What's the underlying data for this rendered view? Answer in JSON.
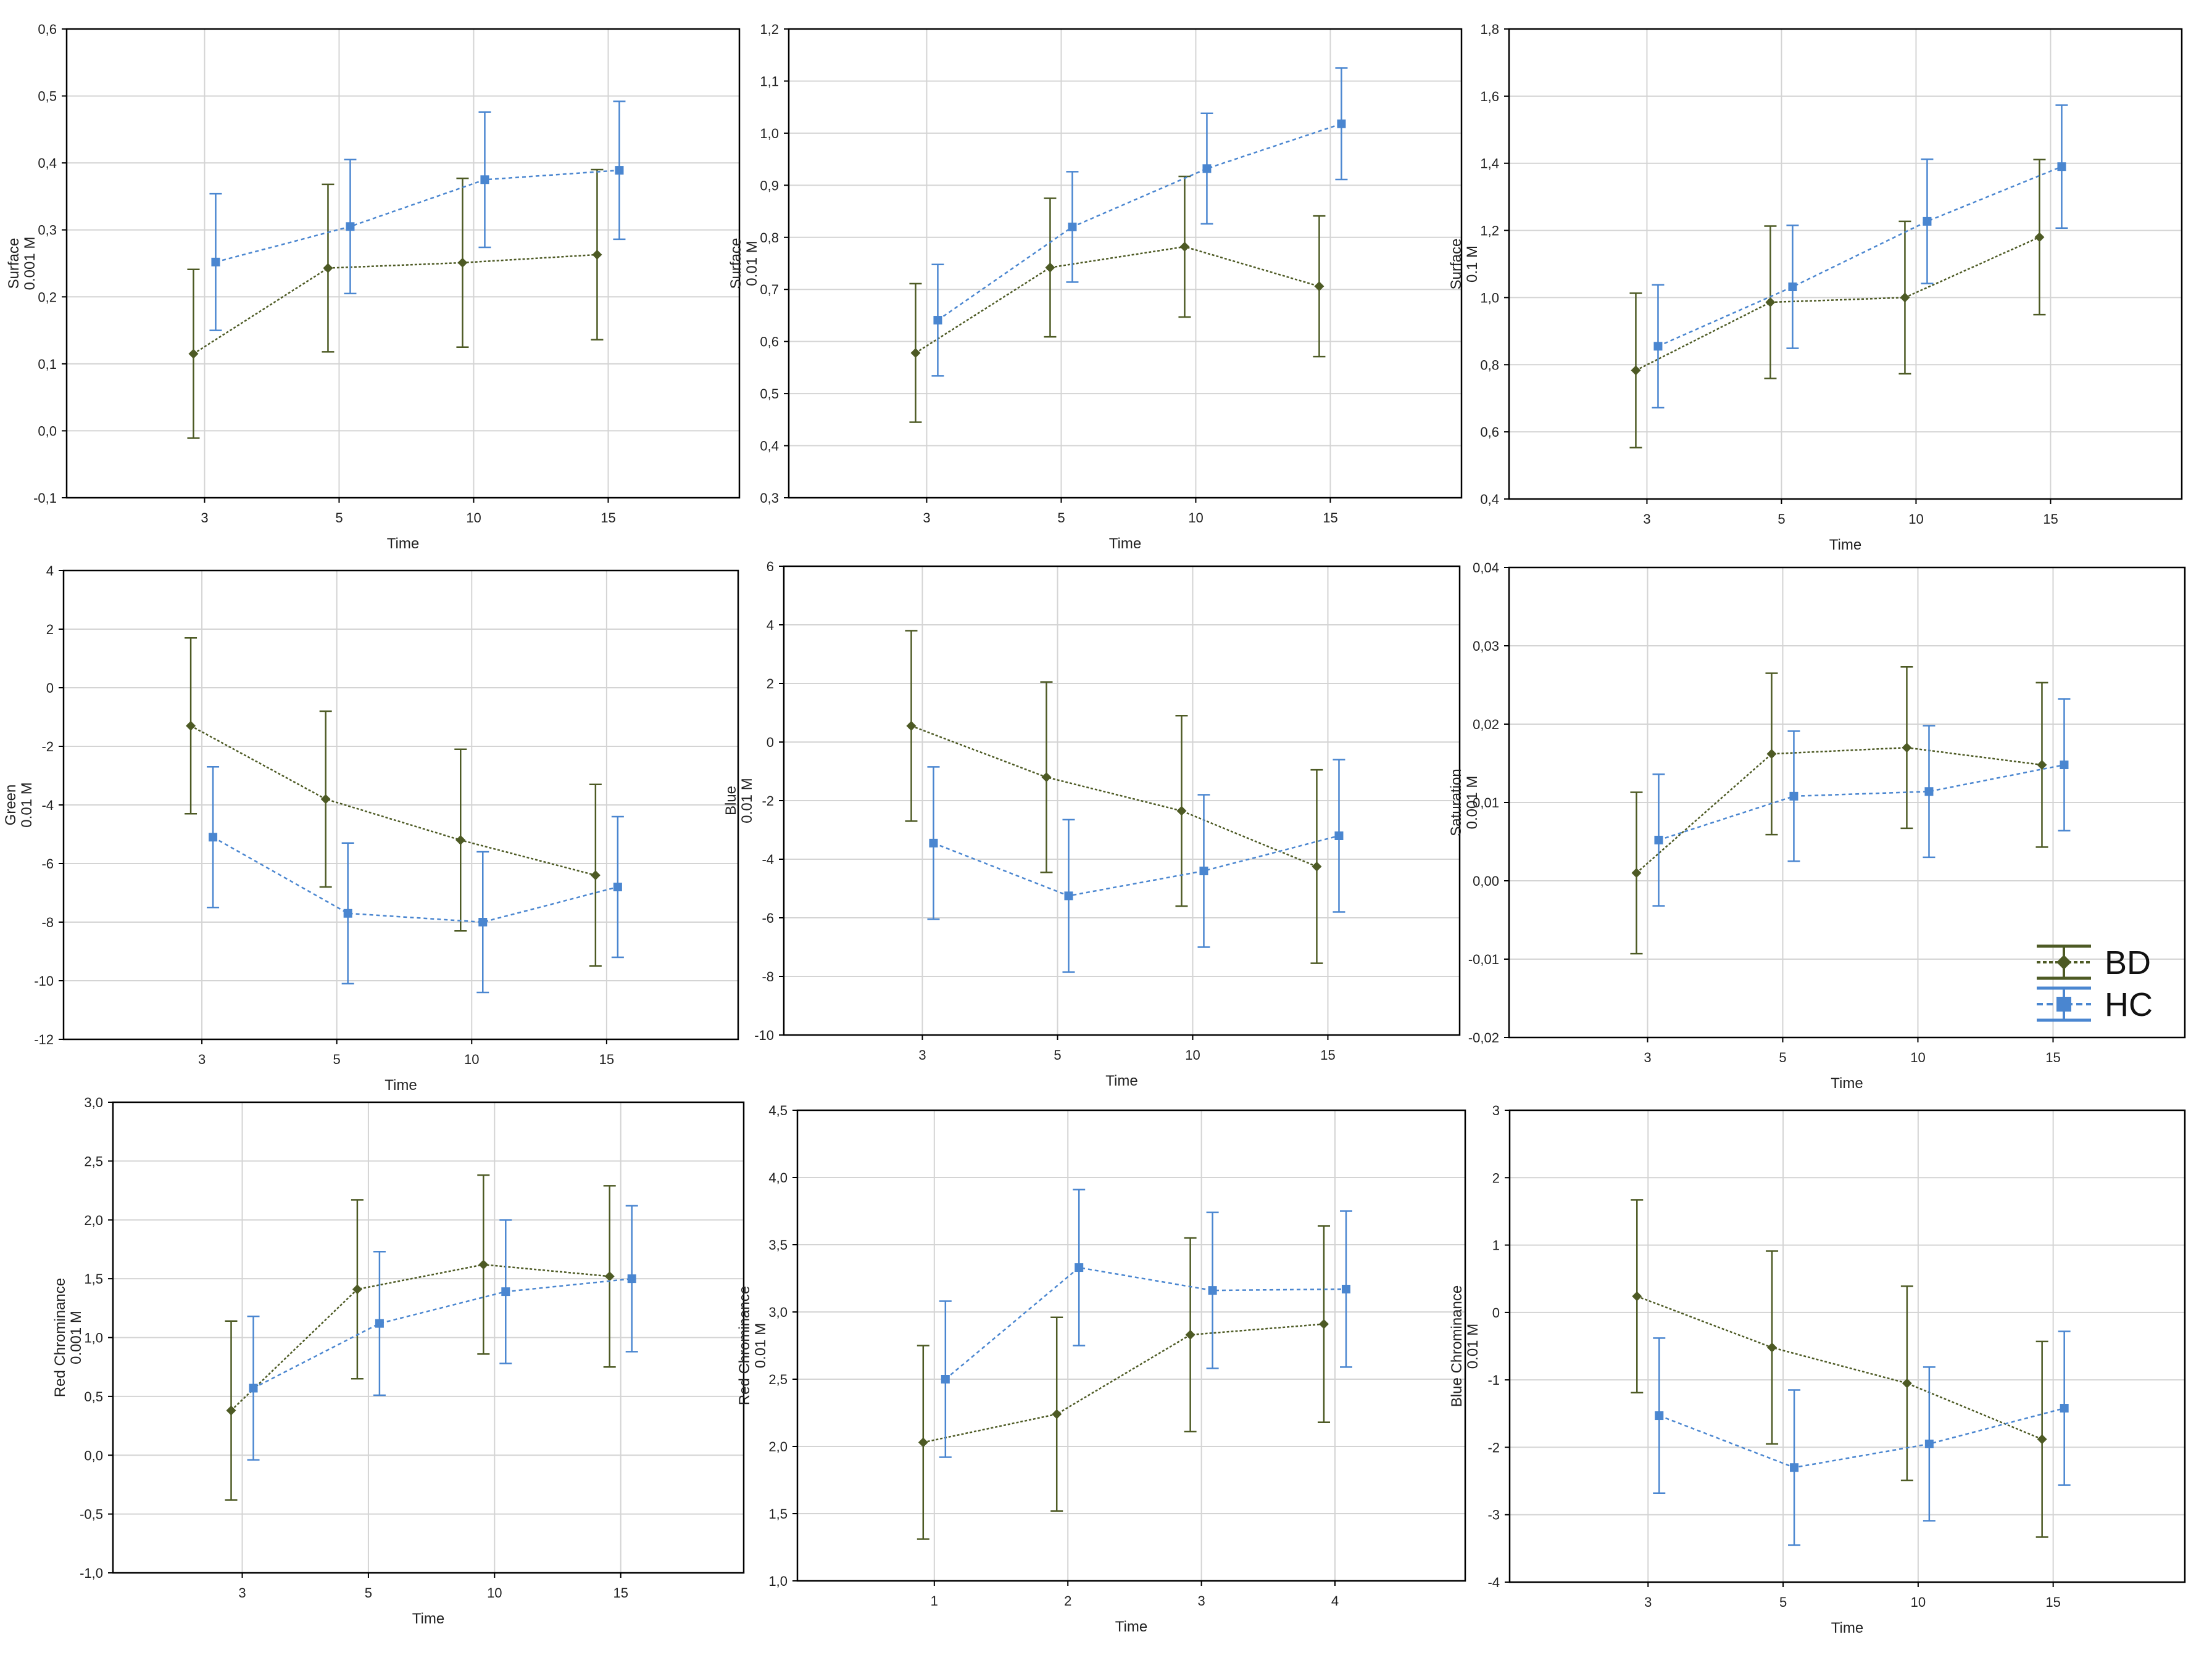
{
  "colors": {
    "BD": "#4d5a24",
    "HC": "#4a86d0",
    "grid": "#d4d4d4",
    "frame": "#000000"
  },
  "legend": {
    "entries": [
      "BD",
      "HC"
    ],
    "placement": "right"
  },
  "chart_data": [
    {
      "type": "line",
      "xlabel": "Time",
      "ylabel": "Surface",
      "ylabel2": "0.001 M",
      "categories": [
        "3",
        "5",
        "10",
        "15"
      ],
      "yticks": [
        "-0,1",
        "0,0",
        "0,1",
        "0,2",
        "0,3",
        "0,4",
        "0,5",
        "0,6"
      ],
      "ylim": [
        -0.1,
        0.6
      ],
      "grid": true,
      "series": [
        {
          "name": "BD",
          "values": [
            0.115,
            0.243,
            0.251,
            0.263
          ],
          "err": [
            0.126,
            0.125,
            0.126,
            0.127
          ]
        },
        {
          "name": "HC",
          "values": [
            0.252,
            0.305,
            0.375,
            0.389
          ],
          "err": [
            0.102,
            0.1,
            0.101,
            0.103
          ]
        }
      ]
    },
    {
      "type": "line",
      "xlabel": "Time",
      "ylabel": "Surface",
      "ylabel2": "0.01 M",
      "categories": [
        "3",
        "5",
        "10",
        "15"
      ],
      "yticks": [
        "0,3",
        "0,4",
        "0,5",
        "0,6",
        "0,7",
        "0,8",
        "0,9",
        "1,0",
        "1,1",
        "1,2"
      ],
      "ylim": [
        0.3,
        1.2
      ],
      "grid": true,
      "series": [
        {
          "name": "BD",
          "values": [
            0.578,
            0.742,
            0.782,
            0.706
          ],
          "err": [
            0.133,
            0.133,
            0.135,
            0.135
          ]
        },
        {
          "name": "HC",
          "values": [
            0.641,
            0.82,
            0.932,
            1.018
          ],
          "err": [
            0.107,
            0.106,
            0.106,
            0.107
          ]
        }
      ]
    },
    {
      "type": "line",
      "xlabel": "Time",
      "ylabel": "Surface",
      "ylabel2": "0.1 M",
      "categories": [
        "3",
        "5",
        "10",
        "15"
      ],
      "yticks": [
        "0,4",
        "0,6",
        "0,8",
        "1,0",
        "1,2",
        "1,4",
        "1,6",
        "1,8"
      ],
      "ylim": [
        0.4,
        1.8
      ],
      "grid": true,
      "series": [
        {
          "name": "BD",
          "values": [
            0.783,
            0.986,
            1.0,
            1.18
          ],
          "err": [
            0.23,
            0.227,
            0.227,
            0.231
          ]
        },
        {
          "name": "HC",
          "values": [
            0.855,
            1.032,
            1.227,
            1.39
          ],
          "err": [
            0.183,
            0.183,
            0.185,
            0.183
          ]
        }
      ]
    },
    {
      "type": "line",
      "xlabel": "Time",
      "ylabel": "Green",
      "ylabel2": "0.01 M",
      "categories": [
        "3",
        "5",
        "10",
        "15"
      ],
      "yticks": [
        "-12",
        "-10",
        "-8",
        "-6",
        "-4",
        "-2",
        "0",
        "2",
        "4"
      ],
      "ylim": [
        -12,
        4
      ],
      "grid": true,
      "series": [
        {
          "name": "BD",
          "values": [
            -1.3,
            -3.8,
            -5.2,
            -6.4
          ],
          "err": [
            3.0,
            3.0,
            3.1,
            3.1
          ]
        },
        {
          "name": "HC",
          "values": [
            -5.1,
            -7.7,
            -8.0,
            -6.8
          ],
          "err": [
            2.4,
            2.4,
            2.4,
            2.4
          ]
        }
      ]
    },
    {
      "type": "line",
      "xlabel": "Time",
      "ylabel": "Blue",
      "ylabel2": "0.01 M",
      "categories": [
        "3",
        "5",
        "10",
        "15"
      ],
      "yticks": [
        "-10",
        "-8",
        "-6",
        "-4",
        "-2",
        "0",
        "2",
        "4",
        "6"
      ],
      "ylim": [
        -10,
        6
      ],
      "grid": true,
      "series": [
        {
          "name": "BD",
          "values": [
            0.55,
            -1.2,
            -2.35,
            -4.25
          ],
          "err": [
            3.25,
            3.25,
            3.25,
            3.3
          ]
        },
        {
          "name": "HC",
          "values": [
            -3.45,
            -5.25,
            -4.4,
            -3.2
          ],
          "err": [
            2.6,
            2.6,
            2.6,
            2.6
          ]
        }
      ]
    },
    {
      "type": "line",
      "xlabel": "Time",
      "ylabel": "Saturation",
      "ylabel2": "0.001 M",
      "categories": [
        "3",
        "5",
        "10",
        "15"
      ],
      "yticks": [
        "-0,02",
        "-0,01",
        "0,00",
        "0,01",
        "0,02",
        "0,03",
        "0,04"
      ],
      "ylim": [
        -0.02,
        0.04
      ],
      "grid": true,
      "series": [
        {
          "name": "BD",
          "values": [
            0.001,
            0.0162,
            0.017,
            0.0148
          ],
          "err": [
            0.0103,
            0.0103,
            0.0103,
            0.0105
          ]
        },
        {
          "name": "HC",
          "values": [
            0.0052,
            0.0108,
            0.0114,
            0.0148
          ],
          "err": [
            0.0084,
            0.0083,
            0.0084,
            0.0084
          ]
        }
      ]
    },
    {
      "type": "line",
      "xlabel": "Time",
      "ylabel": "Red Chrominance",
      "ylabel2": "0.001 M",
      "categories": [
        "3",
        "5",
        "10",
        "15"
      ],
      "yticks": [
        "-1,0",
        "-0,5",
        "0,0",
        "0,5",
        "1,0",
        "1,5",
        "2,0",
        "2,5",
        "3,0"
      ],
      "ylim": [
        -1.0,
        3.0
      ],
      "grid": true,
      "series": [
        {
          "name": "BD",
          "values": [
            0.38,
            1.41,
            1.62,
            1.52
          ],
          "err": [
            0.76,
            0.76,
            0.76,
            0.77
          ]
        },
        {
          "name": "HC",
          "values": [
            0.57,
            1.12,
            1.39,
            1.5
          ],
          "err": [
            0.61,
            0.61,
            0.61,
            0.62
          ]
        }
      ]
    },
    {
      "type": "line",
      "xlabel": "Time",
      "ylabel": "Red Chrominance",
      "ylabel2": "0.01 M",
      "categories": [
        "1",
        "2",
        "3",
        "4"
      ],
      "yticks": [
        "1,0",
        "1,5",
        "2,0",
        "2,5",
        "3,0",
        "3,5",
        "4,0",
        "4,5"
      ],
      "ylim": [
        1.0,
        4.5
      ],
      "grid": true,
      "series": [
        {
          "name": "BD",
          "values": [
            2.03,
            2.24,
            2.83,
            2.91
          ],
          "err": [
            0.72,
            0.72,
            0.72,
            0.73
          ]
        },
        {
          "name": "HC",
          "values": [
            2.5,
            3.33,
            3.16,
            3.17
          ],
          "err": [
            0.58,
            0.58,
            0.58,
            0.58
          ]
        }
      ]
    },
    {
      "type": "line",
      "xlabel": "Time",
      "ylabel": "Blue Chrominance",
      "ylabel2": "0.01 M",
      "categories": [
        "3",
        "5",
        "10",
        "15"
      ],
      "yticks": [
        "-4",
        "-3",
        "-2",
        "-1",
        "0",
        "1",
        "2",
        "3"
      ],
      "ylim": [
        -4,
        3
      ],
      "grid": true,
      "series": [
        {
          "name": "BD",
          "values": [
            0.24,
            -0.52,
            -1.05,
            -1.88
          ],
          "err": [
            1.43,
            1.43,
            1.44,
            1.45
          ]
        },
        {
          "name": "HC",
          "values": [
            -1.53,
            -2.3,
            -1.95,
            -1.42
          ],
          "err": [
            1.15,
            1.15,
            1.14,
            1.14
          ]
        }
      ]
    }
  ]
}
